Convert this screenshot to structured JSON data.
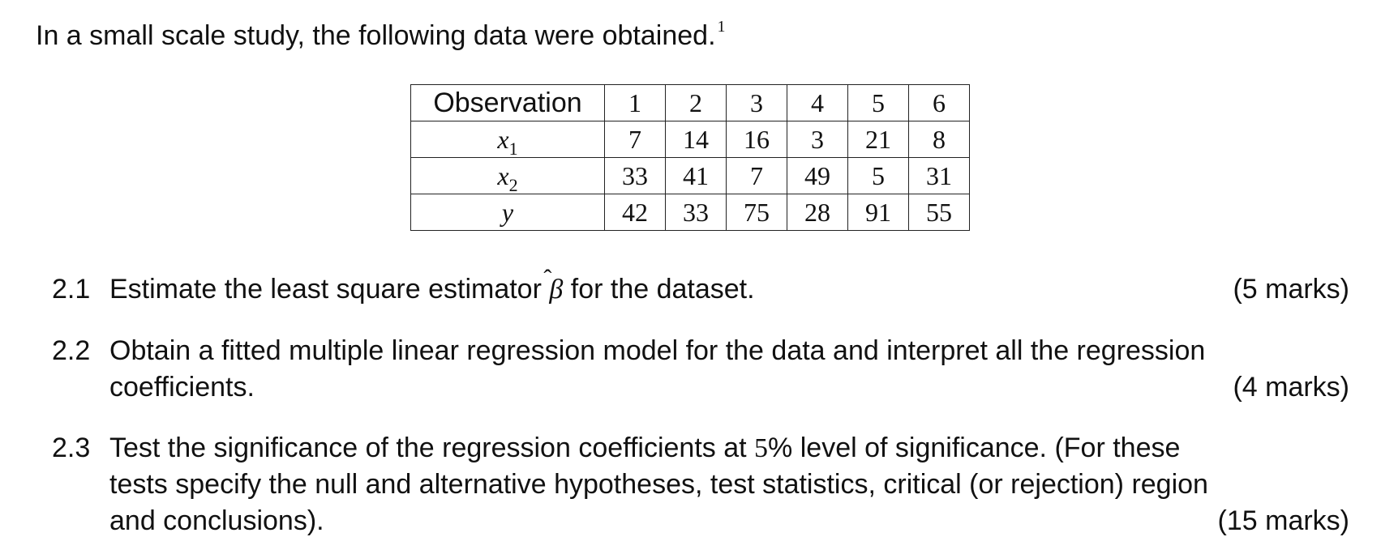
{
  "intro": {
    "text": "In a small scale study, the following data were obtained.",
    "footnote_mark": "1"
  },
  "table": {
    "header_label": "Observation",
    "observations": [
      "1",
      "2",
      "3",
      "4",
      "5",
      "6"
    ],
    "rows": [
      {
        "var": "x",
        "sub": "1",
        "values": [
          "7",
          "14",
          "16",
          "3",
          "21",
          "8"
        ]
      },
      {
        "var": "x",
        "sub": "2",
        "values": [
          "33",
          "41",
          "7",
          "49",
          "5",
          "31"
        ]
      },
      {
        "var": "y",
        "sub": "",
        "values": [
          "42",
          "33",
          "75",
          "28",
          "91",
          "55"
        ]
      }
    ]
  },
  "questions": [
    {
      "number": "2.1",
      "text_before": "Estimate the least square estimator",
      "symbol": "β",
      "text_after": "for the dataset.",
      "marks": "(5 marks)"
    },
    {
      "number": "2.2",
      "line1": "Obtain a fitted multiple linear regression model for the data and interpret all the regression",
      "line2": "coefficients.",
      "marks": "(4 marks)"
    },
    {
      "number": "2.3",
      "line1_before": "Test the significance of the regression coefficients at",
      "line1_num": "5",
      "line1_after": "% level of significance.  (For these",
      "line2": "tests specify the null and alternative hypotheses, test statistics, critical (or rejection) region",
      "line3": "and conclusions).",
      "marks": "(15 marks)"
    }
  ]
}
